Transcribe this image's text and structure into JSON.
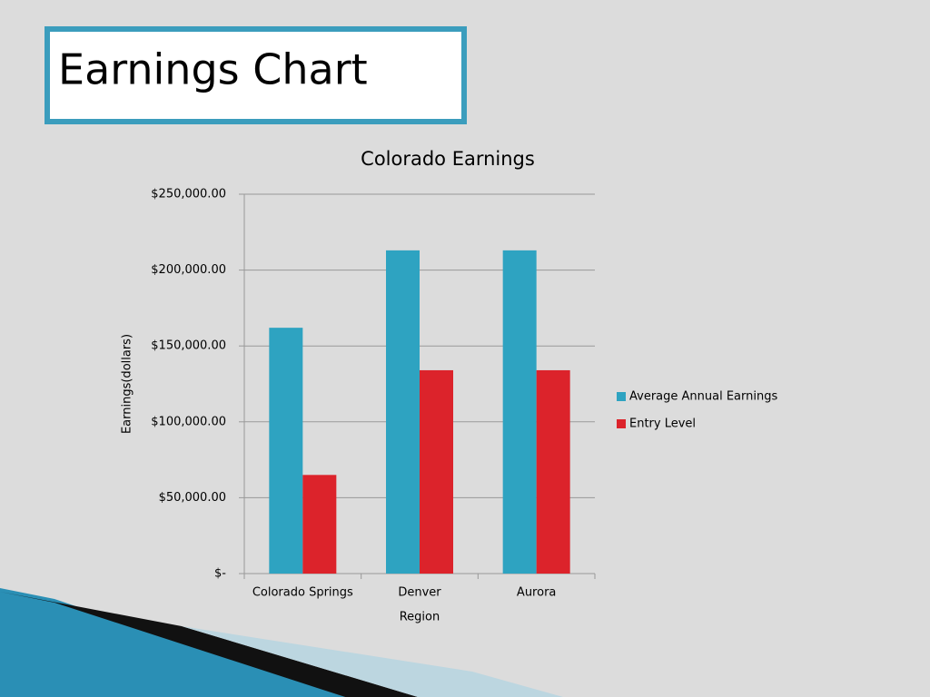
{
  "slide_title": "Earnings Chart",
  "chart_data": {
    "type": "bar",
    "title": "Colorado Earnings",
    "x_label": "Region",
    "y_label": "Earnings(dollars)",
    "categories": [
      "Colorado Springs",
      "Denver",
      "Aurora"
    ],
    "series": [
      {
        "name": "Average Annual Earnings",
        "color": "#2ea3c1",
        "values": [
          162000,
          213000,
          213000
        ]
      },
      {
        "name": "Entry Level",
        "color": "#dc232b",
        "values": [
          65000,
          134000,
          134000
        ]
      }
    ],
    "ylim": [
      0,
      250000
    ],
    "yticks": [
      {
        "value": 0,
        "label": "$-"
      },
      {
        "value": 50000,
        "label": "$50,000.00"
      },
      {
        "value": 100000,
        "label": "$100,000.00"
      },
      {
        "value": 150000,
        "label": "$150,000.00"
      },
      {
        "value": 200000,
        "label": "$200,000.00"
      },
      {
        "value": 250000,
        "label": "$250,000.00"
      }
    ],
    "grid": true,
    "legend": "right"
  }
}
